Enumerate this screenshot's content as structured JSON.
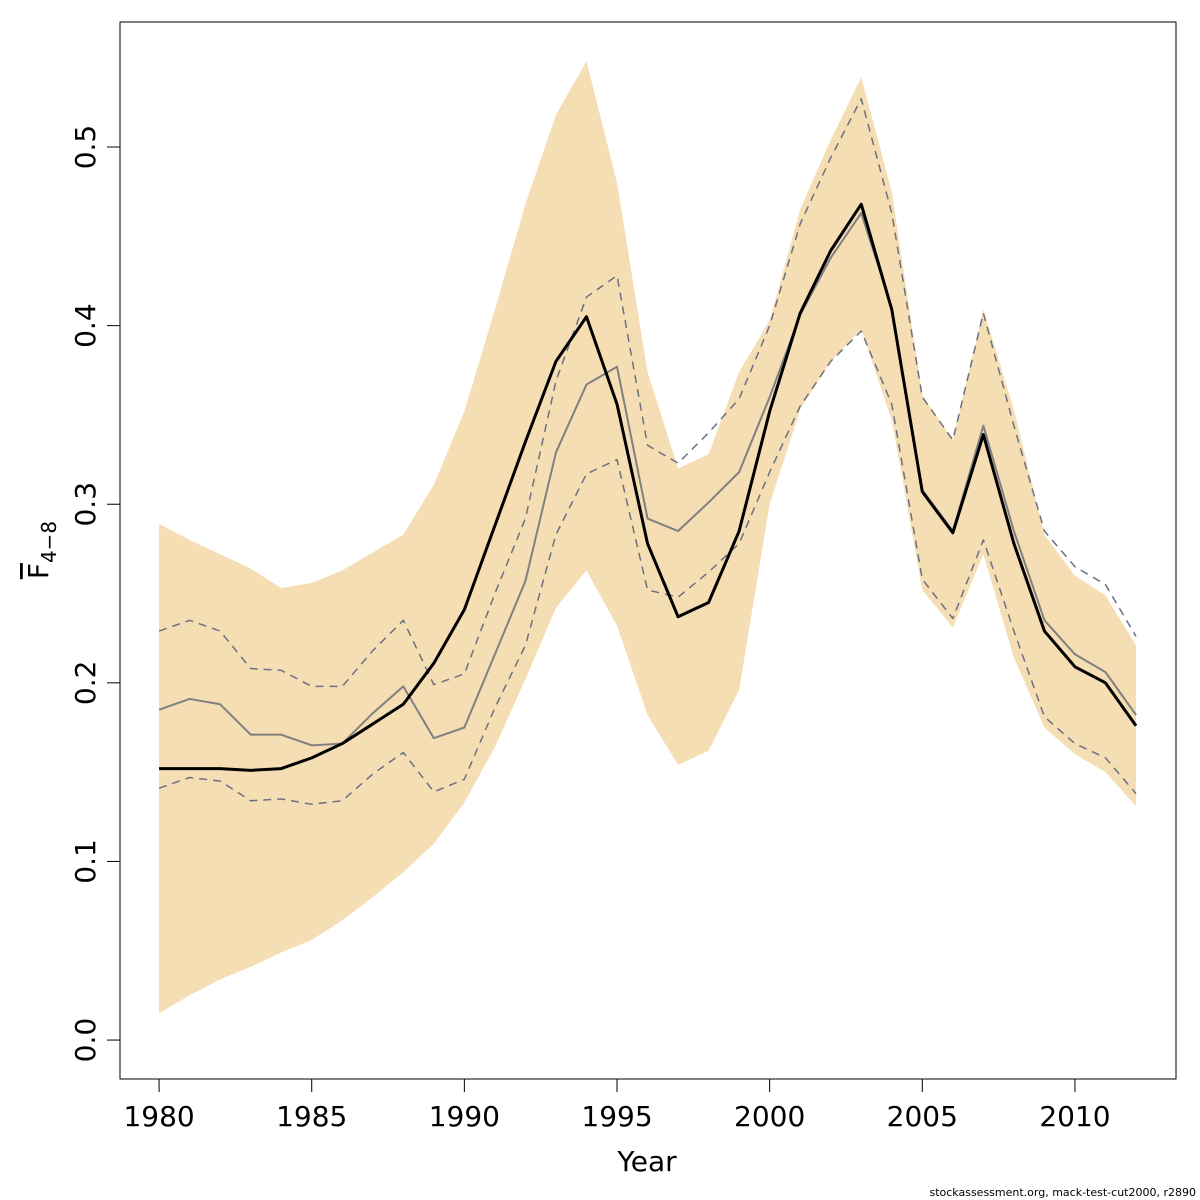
{
  "chart_data": {
    "type": "line",
    "xlabel": "Year",
    "ylabel": {
      "main": "F",
      "sub": "4−8"
    },
    "footer": "stockassessment.org, mack-test-cut2000, r2890",
    "x": [
      1980,
      1981,
      1982,
      1983,
      1984,
      1985,
      1986,
      1987,
      1988,
      1989,
      1990,
      1991,
      1992,
      1993,
      1994,
      1995,
      1996,
      1997,
      1998,
      1999,
      2000,
      2001,
      2002,
      2003,
      2004,
      2005,
      2006,
      2007,
      2008,
      2009,
      2010,
      2011,
      2012
    ],
    "band": {
      "color": "#f5deb3",
      "upper": [
        0.289,
        0.28,
        0.272,
        0.264,
        0.253,
        0.256,
        0.263,
        0.273,
        0.283,
        0.311,
        0.352,
        0.409,
        0.468,
        0.518,
        0.548,
        0.48,
        0.374,
        0.32,
        0.328,
        0.374,
        0.403,
        0.465,
        0.504,
        0.539,
        0.475,
        0.361,
        0.336,
        0.409,
        0.353,
        0.283,
        0.26,
        0.249,
        0.221
      ],
      "lower": [
        0.015,
        0.025,
        0.034,
        0.041,
        0.049,
        0.056,
        0.067,
        0.08,
        0.094,
        0.11,
        0.133,
        0.164,
        0.202,
        0.242,
        0.263,
        0.232,
        0.182,
        0.154,
        0.162,
        0.196,
        0.3,
        0.353,
        0.38,
        0.398,
        0.347,
        0.252,
        0.231,
        0.272,
        0.214,
        0.175,
        0.16,
        0.15,
        0.131
      ]
    },
    "lines": [
      {
        "color": "#000000",
        "style": "solid",
        "width": 3,
        "values": [
          0.152,
          0.152,
          0.152,
          0.151,
          0.152,
          0.158,
          0.166,
          0.177,
          0.188,
          0.211,
          0.241,
          0.288,
          0.335,
          0.38,
          0.405,
          0.356,
          0.278,
          0.237,
          0.245,
          0.285,
          0.352,
          0.407,
          0.442,
          0.468,
          0.409,
          0.307,
          0.284,
          0.339,
          0.278,
          0.229,
          0.209,
          0.2,
          0.176
        ]
      },
      {
        "color": "#808080",
        "style": "solid",
        "width": 2,
        "values": [
          0.185,
          0.191,
          0.188,
          0.171,
          0.171,
          0.165,
          0.166,
          0.183,
          0.198,
          0.169,
          0.175,
          0.216,
          0.257,
          0.329,
          0.367,
          0.377,
          0.292,
          0.285,
          0.301,
          0.318,
          0.36,
          0.406,
          0.438,
          0.463,
          0.41,
          0.308,
          0.285,
          0.344,
          0.285,
          0.235,
          0.216,
          0.206,
          0.182
        ]
      },
      {
        "color": "#6c7080",
        "style": "dashed",
        "width": 1.5,
        "values": [
          0.229,
          0.235,
          0.229,
          0.208,
          0.207,
          0.198,
          0.198,
          0.218,
          0.235,
          0.199,
          0.205,
          0.25,
          0.292,
          0.369,
          0.416,
          0.428,
          0.333,
          0.323,
          0.34,
          0.359,
          0.4,
          0.457,
          0.494,
          0.527,
          0.463,
          0.36,
          0.336,
          0.407,
          0.344,
          0.285,
          0.265,
          0.255,
          0.226
        ]
      },
      {
        "color": "#6c7080",
        "style": "dashed",
        "width": 1.5,
        "values": [
          0.141,
          0.147,
          0.145,
          0.134,
          0.135,
          0.132,
          0.134,
          0.149,
          0.161,
          0.139,
          0.146,
          0.186,
          0.221,
          0.283,
          0.317,
          0.325,
          0.252,
          0.248,
          0.262,
          0.278,
          0.318,
          0.355,
          0.38,
          0.397,
          0.356,
          0.258,
          0.236,
          0.28,
          0.229,
          0.181,
          0.166,
          0.158,
          0.138
        ]
      }
    ],
    "xlim": [
      1978.72,
      2013.31
    ],
    "xticks": [
      1980,
      1985,
      1990,
      1995,
      2000,
      2005,
      2010
    ],
    "ylim": [
      -0.0218,
      0.57
    ],
    "yticks": [
      {
        "value": 0,
        "label": "0.0"
      },
      0.1,
      0.2,
      0.3,
      0.4,
      0.5
    ],
    "grid": false
  }
}
